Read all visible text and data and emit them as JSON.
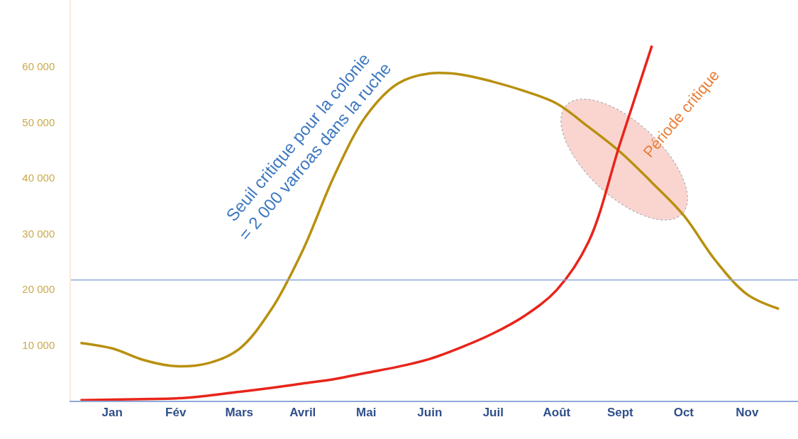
{
  "chart_data": {
    "type": "line",
    "categories": [
      null,
      "Jan",
      null,
      "Fév",
      null,
      "Mars",
      null,
      "Avril",
      null,
      "Mai",
      null,
      "Juin",
      null,
      "Juil",
      null,
      "Août",
      null,
      "Sept",
      null,
      "Oct",
      null,
      "Nov",
      null
    ],
    "series": [
      {
        "color": "#b8900e",
        "values": [
          10400,
          9400,
          7300,
          6200,
          6700,
          9300,
          16300,
          27000,
          40500,
          51200,
          57000,
          58800,
          58600,
          57300,
          55600,
          53400,
          49200,
          44700,
          39200,
          33300,
          25200,
          19100,
          16500
        ]
      },
      {
        "color": "#e8241a",
        "values": [
          100,
          200,
          300,
          400,
          900,
          1600,
          2300,
          3100,
          3900,
          5000,
          6100,
          7500,
          9600,
          12100,
          15300,
          19900,
          28500,
          46300,
          63800,
          null,
          null,
          null,
          null
        ]
      }
    ],
    "ylim": [
      0,
      72000
    ],
    "yticks": [
      {
        "value": 10000,
        "label": "10 000"
      },
      {
        "value": 20000,
        "label": "20 000"
      },
      {
        "value": 30000,
        "label": "30 000"
      },
      {
        "value": 40000,
        "label": "40 000"
      },
      {
        "value": 50000,
        "label": "50 000"
      },
      {
        "value": 60000,
        "label": "60 000"
      }
    ],
    "ref_lines": [
      {
        "axis": "y",
        "value": 21700,
        "color": "#8ea9db"
      }
    ],
    "annotations": [
      "Seuil critique pour la colonie\n= 2 000 varroas dans la ruche",
      "Période critique"
    ],
    "grid": false,
    "marker": "none",
    "line_style": "solid"
  }
}
